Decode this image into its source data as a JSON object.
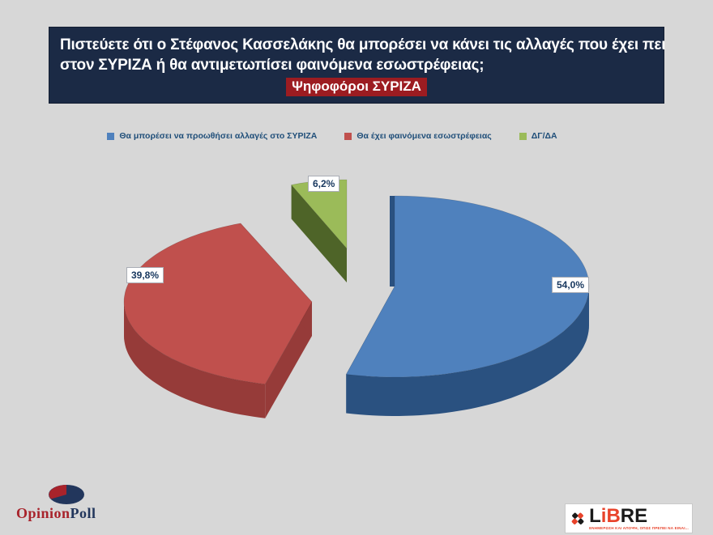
{
  "title": {
    "line1": "Πιστεύετε ότι ο Στέφανος Κασσελάκης θα μπορέσει να κάνει τις αλλαγές που έχει πει",
    "line2": "στον ΣΥΡΙΖΑ ή θα αντιμετωπίσει φαινόμενα εσωστρέφειας;",
    "highlight": "Ψηφοφόροι ΣΥΡΙΖΑ"
  },
  "chart_data": {
    "type": "pie",
    "style": "3d-exploded",
    "title": "Πιστεύετε ότι ο Στέφανος Κασσελάκης θα μπορέσει να κάνει τις αλλαγές που έχει πει στον ΣΥΡΙΖΑ ή θα αντιμετωπίσει φαινόμενα εσωστρέφειας;",
    "subtitle": "Ψηφοφόροι ΣΥΡΙΖΑ",
    "categories": [
      "Θα μπορέσει να προωθήσει αλλαγές στο ΣΥΡΙΖΑ",
      "Θα έχει φαινόμενα εσωστρέφειας",
      "ΔΓ/ΔΑ"
    ],
    "values": [
      54.0,
      39.8,
      6.2
    ],
    "labels": [
      "54,0%",
      "39,8%",
      "6,2%"
    ],
    "colors": [
      "#4F81BD",
      "#C0504D",
      "#9BBB59"
    ],
    "side_colors": [
      "#2A5180",
      "#963B39",
      "#4E6428"
    ],
    "legend_position": "top",
    "start_angle_deg": 0,
    "direction": "clockwise"
  },
  "footer": {
    "opinionpoll": {
      "word1": "Opinion",
      "word2": "Poll",
      "icon": "pie-icon",
      "colors": {
        "red": "#A8232B",
        "navy": "#22365C"
      }
    },
    "libre": {
      "l1": "L",
      "l2": "i",
      "l3": "B",
      "l4": "R",
      "l5": "E",
      "tagline": "ΕΝΗΜΕΡΩΣΗ ΚΑΙ ΑΠΟΨΗ, ΟΠΩΣ ΠΡΕΠΕΙ ΝΑ ΕΙΝΑΙ...",
      "accent": "#E8432B"
    }
  },
  "colors": {
    "background": "#D7D7D7",
    "banner_bg": "#1B2A45",
    "highlight_bg": "#9C1C21",
    "legend_text": "#1F4E79",
    "label_text": "#17375E"
  }
}
